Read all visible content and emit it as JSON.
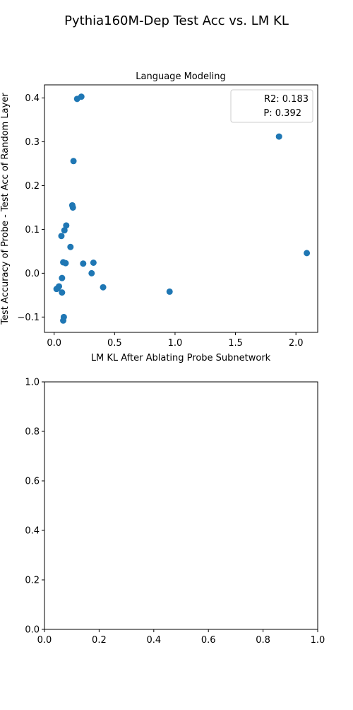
{
  "figure": {
    "title": "Pythia160M-Dep Test Acc vs. LM KL"
  },
  "colors": {
    "marker": "#1f77b4",
    "axis": "#000000",
    "legend_border": "#cccccc"
  },
  "chart_data": [
    {
      "type": "scatter",
      "title": "Language Modeling",
      "xlabel": "LM KL After Ablating Probe Subnetwork",
      "ylabel": "Test Accuracy of Probe - Test Acc of Random Layer",
      "xlim": [
        -0.08,
        2.18
      ],
      "ylim": [
        -0.135,
        0.43
      ],
      "xticks": [
        0.0,
        0.5,
        1.0,
        1.5,
        2.0
      ],
      "xtick_labels": [
        "0.0",
        "0.5",
        "1.0",
        "1.5",
        "2.0"
      ],
      "yticks": [
        -0.1,
        0.0,
        0.1,
        0.2,
        0.3,
        0.4
      ],
      "ytick_labels": [
        "−0.1",
        "0.0",
        "0.1",
        "0.2",
        "0.3",
        "0.4"
      ],
      "grid": false,
      "legend": {
        "placement": "upper right",
        "entries": [
          "R2: 0.183",
          "P: 0.392"
        ]
      },
      "points": [
        {
          "x": 0.19,
          "y": 0.398
        },
        {
          "x": 0.225,
          "y": 0.403
        },
        {
          "x": 1.86,
          "y": 0.312
        },
        {
          "x": 0.16,
          "y": 0.256
        },
        {
          "x": 0.15,
          "y": 0.155
        },
        {
          "x": 0.155,
          "y": 0.15
        },
        {
          "x": 0.1,
          "y": 0.109
        },
        {
          "x": 0.085,
          "y": 0.098
        },
        {
          "x": 0.06,
          "y": 0.085
        },
        {
          "x": 0.135,
          "y": 0.06
        },
        {
          "x": 2.09,
          "y": 0.046
        },
        {
          "x": 0.075,
          "y": 0.025
        },
        {
          "x": 0.095,
          "y": 0.023
        },
        {
          "x": 0.24,
          "y": 0.022
        },
        {
          "x": 0.325,
          "y": 0.024
        },
        {
          "x": 0.31,
          "y": 0.0
        },
        {
          "x": 0.065,
          "y": -0.011
        },
        {
          "x": 0.405,
          "y": -0.032
        },
        {
          "x": 0.04,
          "y": -0.03
        },
        {
          "x": 0.02,
          "y": -0.036
        },
        {
          "x": 0.03,
          "y": -0.034
        },
        {
          "x": 0.065,
          "y": -0.044
        },
        {
          "x": 0.955,
          "y": -0.042
        },
        {
          "x": 0.08,
          "y": -0.1
        },
        {
          "x": 0.075,
          "y": -0.108
        }
      ]
    },
    {
      "type": "scatter",
      "title": "",
      "xlabel": "",
      "ylabel": "",
      "xlim": [
        0.0,
        1.0
      ],
      "ylim": [
        0.0,
        1.0
      ],
      "xticks": [
        0.0,
        0.2,
        0.4,
        0.6,
        0.8,
        1.0
      ],
      "xtick_labels": [
        "0.0",
        "0.2",
        "0.4",
        "0.6",
        "0.8",
        "1.0"
      ],
      "yticks": [
        0.0,
        0.2,
        0.4,
        0.6,
        0.8,
        1.0
      ],
      "ytick_labels": [
        "0.0",
        "0.2",
        "0.4",
        "0.6",
        "0.8",
        "1.0"
      ],
      "grid": false,
      "points": []
    }
  ]
}
